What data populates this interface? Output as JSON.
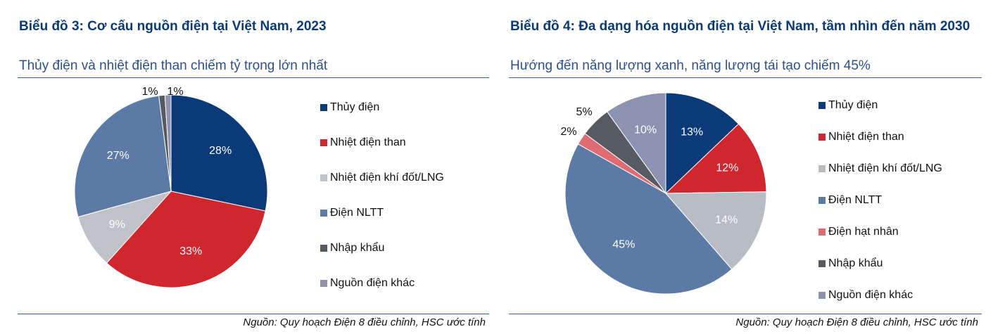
{
  "chart_data": [
    {
      "type": "pie",
      "title": "Biểu đồ 3: Cơ cấu nguồn điện tại Việt Nam, 2023",
      "subtitle": "Thủy điện và nhiệt điện than chiếm tỷ trọng lớn nhất",
      "categories": [
        "Thủy điện",
        "Nhiệt điện than",
        "Nhiệt điện khí đốt/LNG",
        "Điện NLTT",
        "Nhập khẩu",
        "Nguồn điện khác"
      ],
      "values": [
        28,
        33,
        9,
        27,
        1,
        1
      ],
      "value_labels": [
        "28%",
        "33%",
        "9%",
        "27%",
        "1%",
        "1%"
      ],
      "colors": [
        "#0b3a78",
        "#d0262e",
        "#bfc2c8",
        "#5b7ba6",
        "#555a63",
        "#8f94ac"
      ],
      "source": "Nguồn: Quy hoạch Điện 8 điều chỉnh, HSC ước tính"
    },
    {
      "type": "pie",
      "title": "Biểu đồ 4: Đa dạng hóa nguồn điện tại Việt Nam, tầm nhìn đến năm 2030",
      "subtitle": "Hướng đến năng lượng xanh, năng lượng tái tạo chiếm 45%",
      "categories": [
        "Thủy điện",
        "Nhiệt điện than",
        "Nhiệt điện khí đốt/LNG",
        "Điện NLTT",
        "Điện hạt nhân",
        "Nhập khẩu",
        "Nguồn điện khác"
      ],
      "values": [
        13,
        12,
        14,
        45,
        2,
        5,
        10
      ],
      "value_labels": [
        "13%",
        "12%",
        "14%",
        "45%",
        "2%",
        "5%",
        "10%"
      ],
      "colors": [
        "#0b3a78",
        "#d0262e",
        "#b8bcc4",
        "#5b7ba6",
        "#e06b70",
        "#555a63",
        "#8c93b0"
      ],
      "source": "Nguồn: Quy hoạch Điện 8 điều chỉnh, HSC ước tính"
    }
  ]
}
